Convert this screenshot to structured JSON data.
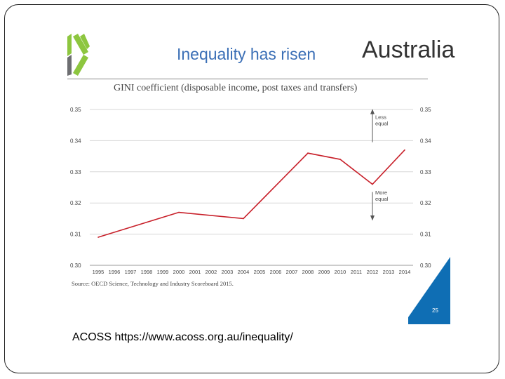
{
  "slide": {
    "heading": "Inequality has risen",
    "country": "Australia",
    "page_number": "25",
    "footer_text": "ACOSS https://www.acoss.org.au/inequality/",
    "source": "Source: OECD Science, Technology and Industry Scoreboard 2015."
  },
  "logo": {
    "icon": "oecd-chevrons-logo",
    "color": "#8dc63f",
    "dark_color": "#6d6e71"
  },
  "colors": {
    "heading": "#3b6fb6",
    "line": "#c8202a",
    "corner": "#0f6eb4",
    "grid": "#d7d7d7"
  },
  "chart_data": {
    "type": "line",
    "title": "GINI coefficient (disposable income, post taxes and transfers)",
    "x": [
      "1995",
      "1996",
      "1997",
      "1998",
      "1999",
      "2000",
      "2001",
      "2002",
      "2003",
      "2004",
      "2005",
      "2006",
      "2007",
      "2008",
      "2009",
      "2010",
      "2011",
      "2012",
      "2013",
      "2014"
    ],
    "series": [
      {
        "values": [
          0.309,
          null,
          null,
          null,
          null,
          0.317,
          null,
          null,
          null,
          0.315,
          null,
          null,
          null,
          0.336,
          null,
          0.334,
          null,
          0.326,
          null,
          0.337
        ]
      }
    ],
    "ylim": [
      0.3,
      0.35
    ],
    "yticks": [
      "0.35",
      "0.34",
      "0.33",
      "0.32",
      "0.31",
      "0.30"
    ],
    "grid": true,
    "axes": "left-and-right",
    "annotations": [
      {
        "text": [
          "Less",
          "equal"
        ],
        "x": "2013",
        "arrow": "up"
      },
      {
        "text": [
          "More",
          "equal"
        ],
        "x": "2013",
        "arrow": "down"
      }
    ]
  }
}
